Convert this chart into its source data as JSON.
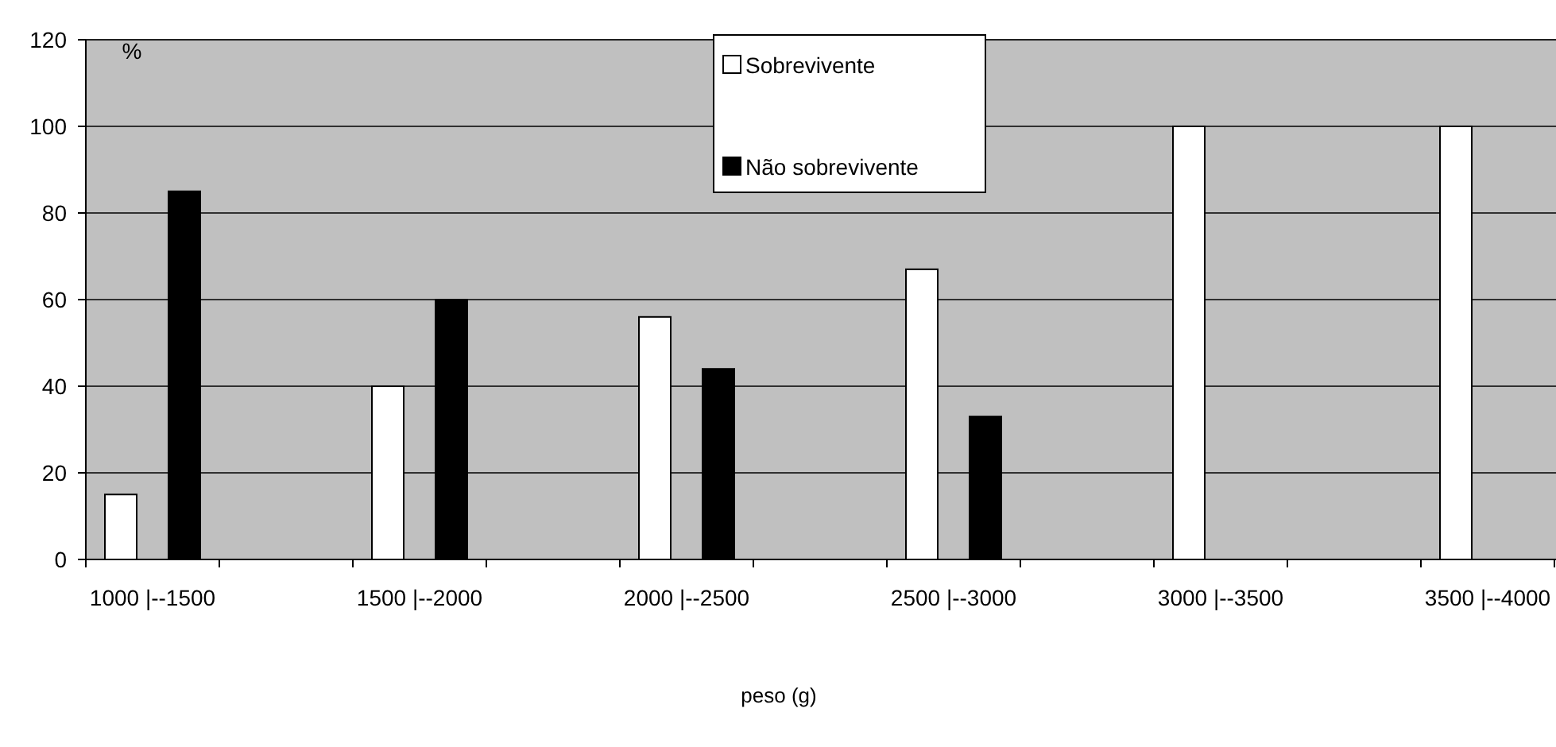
{
  "chart_data": {
    "type": "bar",
    "ylabel": "%",
    "xlabel": "peso (g)",
    "categories": [
      "1000 |--1500",
      "1500 |--2000",
      "2000 |--2500",
      "2500 |--3000",
      "3000 |--3500",
      "3500 |--4000"
    ],
    "series": [
      {
        "name": "Sobrevivente",
        "color": "#ffffff",
        "values": [
          15,
          40,
          56,
          67,
          100,
          100
        ]
      },
      {
        "name": "Não sobrevivente",
        "color": "#000000",
        "values": [
          85,
          60,
          44,
          33,
          0,
          0
        ]
      }
    ],
    "ylim": [
      0,
      120
    ],
    "yticks": [
      0,
      20,
      40,
      60,
      80,
      100,
      120
    ],
    "grid": "y",
    "legend": "top"
  }
}
